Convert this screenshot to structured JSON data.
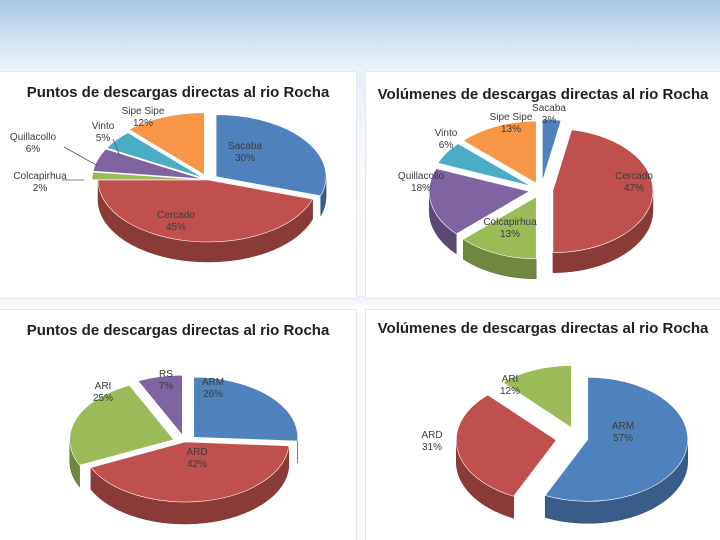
{
  "chart_data": [
    {
      "type": "pie",
      "title": "Puntos de descargas directas al rio Rocha",
      "slices": [
        {
          "label": "Sacaba",
          "value": 30,
          "text": "30%",
          "color": "#4f81bd"
        },
        {
          "label": "Cercado",
          "value": 45,
          "text": "45%",
          "color": "#c0504d"
        },
        {
          "label": "Colcapirhua",
          "value": 2,
          "text": "2%",
          "color": "#9bbb59"
        },
        {
          "label": "Quillacollo",
          "value": 6,
          "text": "6%",
          "color": "#8064a2"
        },
        {
          "label": "Vinto",
          "value": 5,
          "text": "5%",
          "color": "#4bacc6"
        },
        {
          "label": "Sipe Sipe",
          "value": 12,
          "text": "12%",
          "color": "#f79646"
        }
      ]
    },
    {
      "type": "pie",
      "title": "Volúmenes de descargas directas al rio Rocha",
      "slices": [
        {
          "label": "Sacaba",
          "value": 3,
          "text": "3%",
          "color": "#4f81bd"
        },
        {
          "label": "Cercado",
          "value": 47,
          "text": "47%",
          "color": "#c0504d"
        },
        {
          "label": "Colcapirhua",
          "value": 13,
          "text": "13%",
          "color": "#9bbb59"
        },
        {
          "label": "Quillacollo",
          "value": 18,
          "text": "18%",
          "color": "#8064a2"
        },
        {
          "label": "Vinto",
          "value": 6,
          "text": "6%",
          "color": "#4bacc6"
        },
        {
          "label": "Sipe Sipe",
          "value": 13,
          "text": "13%",
          "color": "#f79646"
        }
      ]
    },
    {
      "type": "pie",
      "title": "Puntos de descargas directas al rio Rocha",
      "slices": [
        {
          "label": "ARM",
          "value": 26,
          "text": "26%",
          "color": "#4f81bd"
        },
        {
          "label": "ARD",
          "value": 42,
          "text": "42%",
          "color": "#c0504d"
        },
        {
          "label": "ARI",
          "value": 25,
          "text": "25%",
          "color": "#9bbb59"
        },
        {
          "label": "RS",
          "value": 7,
          "text": "7%",
          "color": "#8064a2"
        }
      ]
    },
    {
      "type": "pie",
      "title": "Volúmenes de descargas directas al rio Rocha",
      "slices": [
        {
          "label": "ARM",
          "value": 57,
          "text": "57%",
          "color": "#4f81bd"
        },
        {
          "label": "ARD",
          "value": 31,
          "text": "31%",
          "color": "#c0504d"
        },
        {
          "label": "ARI",
          "value": 12,
          "text": "12%",
          "color": "#9bbb59"
        }
      ]
    }
  ]
}
